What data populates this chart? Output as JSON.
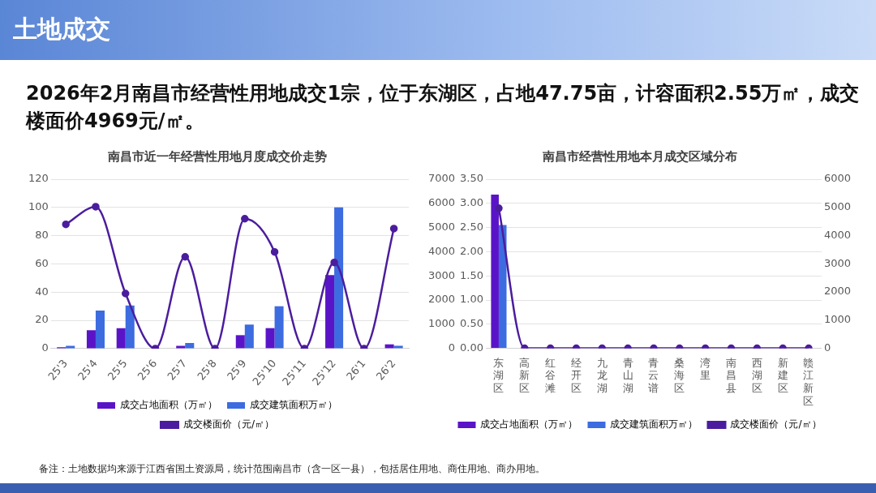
{
  "chart_data": [
    {
      "type": "other",
      "title": "土地成交",
      "subtitle": "2026年2月南昌市经营性用地成交1宗，位于东湖区，占地47.75亩，计容面积2.55万㎡，成交楼面价4969元/㎡。",
      "annotations": [
        "备注：土地数据均来源于江西省国土资源局，统计范围南昌市（含一区一县），包括居住用地、商住用地、商办用地。"
      ]
    },
    {
      "type": "bar",
      "title": "南昌市近一年经营性用地月度成交价走势",
      "categories": [
        "25'3",
        "25'4",
        "25'5",
        "25'6",
        "25'7",
        "25'8",
        "25'9",
        "25'10",
        "25'11",
        "25'12",
        "26'1",
        "26'2"
      ],
      "series": [
        {
          "name": "成交占地面积（万㎡）",
          "type": "bar",
          "color": "#5a14c8",
          "values": [
            1,
            13,
            14.5,
            0,
            2,
            0,
            9.5,
            14.5,
            0,
            52,
            0,
            3
          ]
        },
        {
          "name": "成交建筑面积万㎡）",
          "type": "bar",
          "color": "#3d6be0",
          "values": [
            2,
            27,
            30.5,
            0,
            4,
            0,
            17,
            30,
            0,
            100,
            0,
            2
          ]
        },
        {
          "name": "成交楼面价（元/㎡）",
          "type": "line",
          "color": "#4b1d9e",
          "values": [
            88,
            100.5,
            39,
            0,
            65,
            0,
            92,
            68.5,
            0,
            61,
            0,
            85
          ]
        }
      ],
      "ylim": [
        0,
        120
      ],
      "yticks": [
        0,
        20,
        40,
        60,
        80,
        100,
        120
      ],
      "grid": "y",
      "legend": "bottom",
      "marker": "circle",
      "line_style": "solid"
    },
    {
      "type": "bar",
      "title": "南昌市经营性用地本月成交区域分布",
      "categories": [
        "东湖区",
        "高新区",
        "红谷滩",
        "经开区",
        "九龙湖",
        "青山湖",
        "青云谱",
        "桑海区",
        "湾里",
        "南昌县",
        "西湖区",
        "新建区",
        "赣江新区"
      ],
      "series": [
        {
          "name": "成交占地面积（万㎡）",
          "type": "bar",
          "color": "#5a14c8",
          "values": [
            3.18,
            0,
            0,
            0,
            0,
            0,
            0,
            0,
            0,
            0,
            0,
            0,
            0
          ]
        },
        {
          "name": "成交建筑面积万㎡）",
          "type": "bar",
          "color": "#3d6be0",
          "values": [
            2.55,
            0,
            0,
            0,
            0,
            0,
            0,
            0,
            0,
            0,
            0,
            0,
            0
          ]
        },
        {
          "name": "成交楼面价（元/㎡）",
          "type": "line",
          "axis": "y2",
          "color": "#4b1d9e",
          "values": [
            4969,
            0,
            0,
            0,
            0,
            0,
            0,
            0,
            0,
            0,
            0,
            0,
            0
          ]
        }
      ],
      "ylim": [
        0,
        3.5
      ],
      "yticks": [
        {
          "value": 0,
          "label": "0.00"
        },
        {
          "value": 0.5,
          "label": "0.50"
        },
        {
          "value": 1,
          "label": "1.00"
        },
        {
          "value": 1.5,
          "label": "1.50"
        },
        {
          "value": 2,
          "label": "2.00"
        },
        {
          "value": 2.5,
          "label": "2.50"
        },
        {
          "value": 3,
          "label": "3.00"
        },
        {
          "value": 3.5,
          "label": "3.50"
        }
      ],
      "y2lim": [
        0,
        6000
      ],
      "y2ticks": [
        0,
        1000,
        2000,
        3000,
        4000,
        5000,
        6000
      ],
      "y3lim": [
        0,
        7000
      ],
      "y3ticks": [
        0,
        1000,
        2000,
        3000,
        4000,
        5000,
        6000,
        7000
      ],
      "grid": "y",
      "legend": "bottom",
      "marker": "circle",
      "line_style": "solid"
    }
  ]
}
